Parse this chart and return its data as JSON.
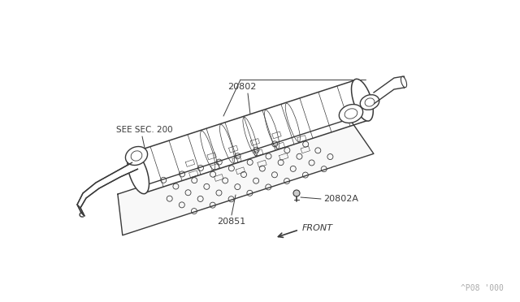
{
  "bg_color": "#ffffff",
  "line_color": "#3a3a3a",
  "text_color": "#3a3a3a",
  "watermark_color": "#aaaaaa",
  "watermark_text": "^P08 '000",
  "label_20802": "20802",
  "label_20802A": "20802A",
  "label_20851": "20851",
  "label_see_sec": "SEE SEC. 200",
  "label_front": "FRONT",
  "figsize": [
    6.4,
    3.72
  ],
  "dpi": 100
}
